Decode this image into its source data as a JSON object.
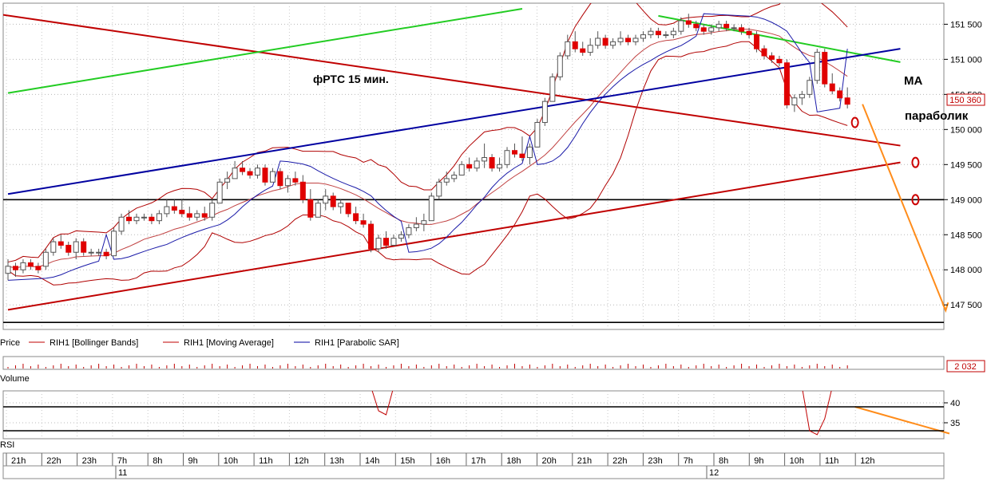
{
  "chart_data": {
    "type": "candlestick",
    "title": "фРТС   15 мин.",
    "annotations": {
      "ma_label": "MA",
      "sar_label": "параболик"
    },
    "price_axis": {
      "ticks": [
        151500,
        151000,
        150500,
        150000,
        149500,
        149000,
        148500,
        148000,
        147500
      ],
      "tick_labels": [
        "151 500",
        "151 000",
        "150 500",
        "150 000",
        "149 500",
        "149 000",
        "148 500",
        "148 000",
        "147 500"
      ],
      "ylim": [
        147150,
        151800
      ],
      "last_price": 150360,
      "last_price_label": "150 360"
    },
    "time_axis": {
      "labels": [
        "21h",
        "22h",
        "23h",
        "7h",
        "8h",
        "9h",
        "10h",
        "11h",
        "12h",
        "13h",
        "14h",
        "15h",
        "16h",
        "17h",
        "18h",
        "20h",
        "21h",
        "22h",
        "23h",
        "7h",
        "8h",
        "9h",
        "10h",
        "11h",
        "12h"
      ],
      "dates": [
        "11",
        "12"
      ]
    },
    "legend": [
      "Price",
      "RIH1 [Bollinger Bands]",
      "RIH1 [Moving Average]",
      "RIH1 [Parabolic SAR]"
    ],
    "volume_panel": {
      "label": "Volume",
      "last_value": "2 032"
    },
    "rsi_panel": {
      "label": "RSI",
      "ticks": [
        40,
        35
      ],
      "tick_labels": [
        "40",
        "35"
      ],
      "ylim": [
        31,
        43
      ],
      "levels": [
        39,
        33
      ]
    },
    "horizontal_levels": [
      149000,
      147250
    ],
    "candles": [
      [
        147950,
        148150,
        147850,
        148050
      ],
      [
        148050,
        148100,
        147900,
        148000
      ],
      [
        148000,
        148150,
        147950,
        148100
      ],
      [
        148100,
        148150,
        148000,
        148050
      ],
      [
        148050,
        148100,
        147950,
        148000
      ],
      [
        148050,
        148300,
        148000,
        148250
      ],
      [
        148250,
        148450,
        148200,
        148400
      ],
      [
        148400,
        148500,
        148300,
        148350
      ],
      [
        148350,
        148400,
        148200,
        148250
      ],
      [
        148250,
        148450,
        148150,
        148400
      ],
      [
        148400,
        148450,
        148200,
        148250
      ],
      [
        148250,
        148300,
        148200,
        148250
      ],
      [
        148250,
        148300,
        148200,
        148250
      ],
      [
        148250,
        148300,
        148150,
        148200
      ],
      [
        148200,
        148600,
        148200,
        148550
      ],
      [
        148550,
        148800,
        148500,
        148750
      ],
      [
        148750,
        148850,
        148650,
        148700
      ],
      [
        148700,
        148800,
        148650,
        148750
      ],
      [
        148750,
        148800,
        148700,
        148750
      ],
      [
        148750,
        148800,
        148650,
        148700
      ],
      [
        148700,
        148850,
        148650,
        148800
      ],
      [
        148800,
        149000,
        148750,
        148900
      ],
      [
        148900,
        149000,
        148800,
        148850
      ],
      [
        148850,
        149000,
        148750,
        148800
      ],
      [
        148800,
        148900,
        148700,
        148750
      ],
      [
        148750,
        148850,
        148700,
        148800
      ],
      [
        148800,
        148900,
        148700,
        148750
      ],
      [
        148750,
        149000,
        148700,
        148950
      ],
      [
        148950,
        149300,
        148950,
        149250
      ],
      [
        149250,
        149400,
        149150,
        149300
      ],
      [
        149300,
        149550,
        149300,
        149450
      ],
      [
        149450,
        149550,
        149350,
        149400
      ],
      [
        149400,
        149450,
        149300,
        149350
      ],
      [
        149350,
        149500,
        149300,
        149450
      ],
      [
        149450,
        149500,
        149200,
        149250
      ],
      [
        149250,
        149450,
        149250,
        149400
      ],
      [
        149400,
        149450,
        149150,
        149200
      ],
      [
        149200,
        149350,
        149100,
        149300
      ],
      [
        149300,
        149400,
        149200,
        149250
      ],
      [
        149250,
        149350,
        148950,
        149000
      ],
      [
        149000,
        149150,
        148700,
        148750
      ],
      [
        148750,
        149000,
        148750,
        148950
      ],
      [
        148950,
        149150,
        148850,
        149050
      ],
      [
        149050,
        149100,
        148850,
        148900
      ],
      [
        148900,
        149000,
        148800,
        148950
      ],
      [
        148950,
        148950,
        148750,
        148800
      ],
      [
        148800,
        148900,
        148650,
        148700
      ],
      [
        148700,
        148800,
        148600,
        148650
      ],
      [
        148650,
        148700,
        148250,
        148300
      ],
      [
        148300,
        148500,
        148250,
        148450
      ],
      [
        148450,
        148550,
        148300,
        148350
      ],
      [
        148350,
        148500,
        148350,
        148450
      ],
      [
        148450,
        148550,
        148400,
        148500
      ],
      [
        148500,
        148650,
        148450,
        148600
      ],
      [
        148600,
        148750,
        148550,
        148650
      ],
      [
        148650,
        148800,
        148550,
        148700
      ],
      [
        148700,
        149100,
        148700,
        149050
      ],
      [
        149050,
        149300,
        149000,
        149250
      ],
      [
        149250,
        149400,
        149200,
        149300
      ],
      [
        149300,
        149400,
        149250,
        149350
      ],
      [
        149350,
        149550,
        149350,
        149500
      ],
      [
        149500,
        149600,
        149400,
        149450
      ],
      [
        149450,
        149600,
        149400,
        149550
      ],
      [
        149550,
        149800,
        149450,
        149600
      ],
      [
        149600,
        149650,
        149400,
        149450
      ],
      [
        149450,
        149600,
        149400,
        149500
      ],
      [
        149500,
        149750,
        149450,
        149700
      ],
      [
        149700,
        149800,
        149600,
        149650
      ],
      [
        149650,
        149900,
        149550,
        149600
      ],
      [
        149600,
        149800,
        149500,
        149750
      ],
      [
        149750,
        150150,
        149750,
        150100
      ],
      [
        150100,
        150450,
        150050,
        150400
      ],
      [
        150400,
        150800,
        150400,
        150750
      ],
      [
        150750,
        151100,
        150700,
        151050
      ],
      [
        151050,
        151350,
        151000,
        151250
      ],
      [
        151250,
        151400,
        151100,
        151150
      ],
      [
        151150,
        151250,
        151050,
        151100
      ],
      [
        151100,
        151300,
        151050,
        151200
      ],
      [
        151200,
        151400,
        151150,
        151300
      ],
      [
        151300,
        151350,
        151150,
        151200
      ],
      [
        151200,
        151300,
        151150,
        151250
      ],
      [
        151250,
        151400,
        151200,
        151300
      ],
      [
        151300,
        151350,
        151200,
        151250
      ],
      [
        151250,
        151350,
        151200,
        151300
      ],
      [
        151300,
        151400,
        151250,
        151350
      ],
      [
        151350,
        151450,
        151300,
        151400
      ],
      [
        151400,
        151450,
        151300,
        151350
      ],
      [
        151350,
        151400,
        151300,
        151350
      ],
      [
        151350,
        151450,
        151300,
        151400
      ],
      [
        151400,
        151600,
        151350,
        151550
      ],
      [
        151550,
        151650,
        151450,
        151500
      ],
      [
        151500,
        151550,
        151400,
        151450
      ],
      [
        151450,
        151500,
        151350,
        151400
      ],
      [
        151400,
        151500,
        151350,
        151450
      ],
      [
        151450,
        151550,
        151400,
        151500
      ],
      [
        151500,
        151550,
        151400,
        151450
      ],
      [
        151450,
        151500,
        151400,
        151450
      ],
      [
        151450,
        151500,
        151350,
        151400
      ],
      [
        151400,
        151450,
        151300,
        151350
      ],
      [
        151350,
        151400,
        151100,
        151150
      ],
      [
        151150,
        151200,
        151000,
        151050
      ],
      [
        151050,
        151100,
        150950,
        151000
      ],
      [
        151000,
        151050,
        150900,
        150950
      ],
      [
        150950,
        151000,
        150300,
        150350
      ],
      [
        150350,
        150500,
        150250,
        150450
      ],
      [
        150450,
        150550,
        150350,
        150500
      ],
      [
        150500,
        150750,
        150450,
        150700
      ],
      [
        150700,
        151150,
        150650,
        151100
      ],
      [
        151100,
        151150,
        150600,
        150650
      ],
      [
        150650,
        150800,
        150500,
        150550
      ],
      [
        150550,
        150600,
        150400,
        150450
      ],
      [
        150450,
        150600,
        150300,
        150360
      ]
    ],
    "trend_lines": [
      {
        "name": "red-down",
        "color": "#c00000",
        "from": [
          -8,
          151750
        ],
        "to": [
          118,
          149770
        ]
      },
      {
        "name": "red-up",
        "color": "#c00000",
        "from": [
          0,
          147430
        ],
        "to": [
          118,
          149530
        ]
      },
      {
        "name": "green-left",
        "color": "#22cc22",
        "from": [
          0,
          150520
        ],
        "to": [
          68,
          151720
        ]
      },
      {
        "name": "green-right",
        "color": "#22cc22",
        "from": [
          86,
          151620
        ],
        "to": [
          118,
          150960
        ]
      },
      {
        "name": "blue",
        "color": "#0000a0",
        "from": [
          0,
          149080
        ],
        "to": [
          118,
          151150
        ]
      }
    ],
    "forecast_arrows": [
      {
        "color": "#ff8c1a",
        "from": [
          113,
          150360
        ],
        "to": [
          124,
          147420
        ]
      },
      {
        "color": "#ff8c1a",
        "from": [
          112,
          39
        ],
        "to": [
          119,
          32.3
        ]
      }
    ],
    "markers": [
      {
        "color": "#cc0000",
        "at": [
          112,
          150100
        ]
      },
      {
        "color": "#cc0000",
        "at": [
          120,
          149530
        ]
      },
      {
        "color": "#cc0000",
        "at": [
          120,
          149000
        ]
      }
    ]
  }
}
